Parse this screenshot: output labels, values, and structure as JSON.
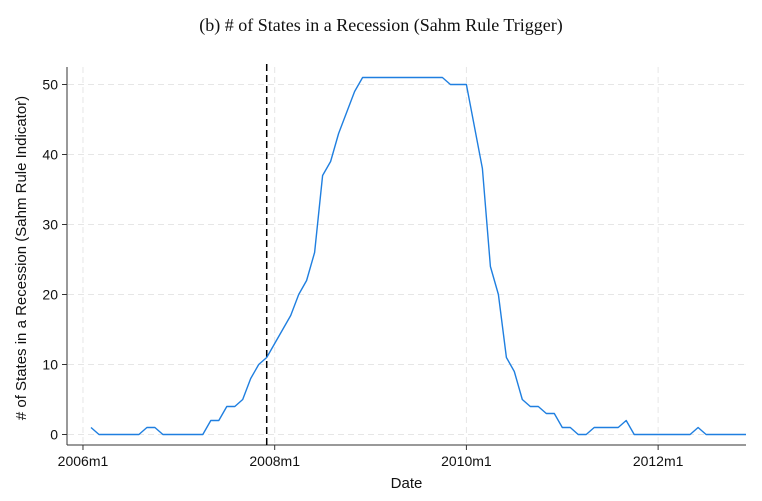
{
  "chart_data": {
    "type": "line",
    "title": "(b) # of States in a Recession (Sahm Rule Trigger)",
    "xlabel": "Date",
    "ylabel": "# of States in a Recession (Sahm Rule Indicator)",
    "x_ticks": [
      "2006m1",
      "2008m1",
      "2010m1",
      "2012m1"
    ],
    "y_ticks": [
      0,
      10,
      20,
      30,
      40,
      50
    ],
    "ylim": [
      -1.5,
      52.5
    ],
    "xlim": [
      "2005m11",
      "2012m12"
    ],
    "grid": true,
    "reference_line": {
      "x": "2007m12",
      "style": "dashed",
      "color": "#000000"
    },
    "series": [
      {
        "color": "#1f7fe0",
        "x": [
          "2006m2",
          "2006m3",
          "2006m4",
          "2006m5",
          "2006m6",
          "2006m7",
          "2006m8",
          "2006m9",
          "2006m10",
          "2006m11",
          "2006m12",
          "2007m1",
          "2007m2",
          "2007m3",
          "2007m4",
          "2007m5",
          "2007m6",
          "2007m7",
          "2007m8",
          "2007m9",
          "2007m10",
          "2007m11",
          "2007m12",
          "2008m1",
          "2008m2",
          "2008m3",
          "2008m4",
          "2008m5",
          "2008m6",
          "2008m7",
          "2008m8",
          "2008m9",
          "2008m10",
          "2008m11",
          "2008m12",
          "2009m1",
          "2009m2",
          "2009m3",
          "2009m4",
          "2009m5",
          "2009m6",
          "2009m7",
          "2009m8",
          "2009m9",
          "2009m10",
          "2009m11",
          "2009m12",
          "2010m1",
          "2010m2",
          "2010m3",
          "2010m4",
          "2010m5",
          "2010m6",
          "2010m7",
          "2010m8",
          "2010m9",
          "2010m10",
          "2010m11",
          "2010m12",
          "2011m1",
          "2011m2",
          "2011m3",
          "2011m4",
          "2011m5",
          "2011m6",
          "2011m7",
          "2011m8",
          "2011m9",
          "2011m10",
          "2011m11",
          "2011m12",
          "2012m1",
          "2012m2",
          "2012m3",
          "2012m4",
          "2012m5",
          "2012m6",
          "2012m7",
          "2012m8",
          "2012m9",
          "2012m10",
          "2012m11",
          "2012m12"
        ],
        "values": [
          1,
          0,
          0,
          0,
          0,
          0,
          0,
          1,
          1,
          0,
          0,
          0,
          0,
          0,
          0,
          2,
          2,
          4,
          4,
          5,
          8,
          10,
          11,
          13,
          15,
          17,
          20,
          22,
          26,
          37,
          39,
          43,
          46,
          49,
          51,
          51,
          51,
          51,
          51,
          51,
          51,
          51,
          51,
          51,
          51,
          50,
          50,
          50,
          44,
          38,
          24,
          20,
          11,
          9,
          5,
          4,
          4,
          3,
          3,
          1,
          1,
          0,
          0,
          1,
          1,
          1,
          1,
          2,
          0,
          0,
          0,
          0,
          0,
          0,
          0,
          0,
          1,
          0,
          0,
          0,
          0,
          0,
          0
        ]
      }
    ]
  }
}
